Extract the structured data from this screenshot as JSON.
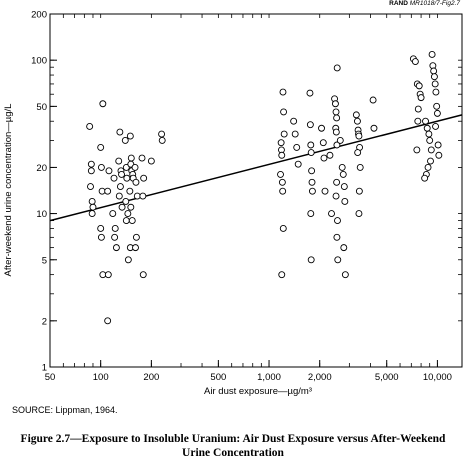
{
  "header": {
    "org": "RAND",
    "doc": "MR1018/7-Fig2.7"
  },
  "source_note": "SOURCE:  Lippman, 1964.",
  "caption": {
    "line1": "Figure 2.7—Exposure to Insoluble Uranium:  Air Dust Exposure versus After-Weekend",
    "line2": "Urine Concentration"
  },
  "chart_data": {
    "type": "scatter",
    "title": "",
    "xlabel": "Air dust exposure—µg/m³",
    "ylabel": "After-weekend urine concentration—µg/L",
    "x_scale": "log",
    "y_scale": "log",
    "xlim": [
      50,
      14000
    ],
    "ylim": [
      1,
      200
    ],
    "x_ticks": [
      {
        "value": 50,
        "label": "50"
      },
      {
        "value": 100,
        "label": "100"
      },
      {
        "value": 200,
        "label": "200"
      },
      {
        "value": 500,
        "label": "500"
      },
      {
        "value": 1000,
        "label": "1,000"
      },
      {
        "value": 2000,
        "label": "2,000"
      },
      {
        "value": 5000,
        "label": "5,000"
      },
      {
        "value": 10000,
        "label": "10,000"
      }
    ],
    "y_ticks": [
      {
        "value": 1,
        "label": "1"
      },
      {
        "value": 2,
        "label": "2"
      },
      {
        "value": 5,
        "label": "5"
      },
      {
        "value": 10,
        "label": "10"
      },
      {
        "value": 20,
        "label": "20"
      },
      {
        "value": 50,
        "label": "50"
      },
      {
        "value": 100,
        "label": "100"
      },
      {
        "value": 200,
        "label": "200"
      }
    ],
    "grid": false,
    "legend": "none",
    "colors": {
      "marker_stroke": "#000000",
      "marker_fill": "#ffffff",
      "line": "#000000"
    },
    "trend_line": {
      "x": [
        50,
        14000
      ],
      "y": [
        9,
        44
      ]
    },
    "points": [
      [
        86,
        37
      ],
      [
        88,
        21
      ],
      [
        88,
        19
      ],
      [
        87,
        15
      ],
      [
        89,
        12
      ],
      [
        90,
        11
      ],
      [
        89,
        10
      ],
      [
        103,
        52
      ],
      [
        100,
        27
      ],
      [
        101,
        20
      ],
      [
        102,
        14
      ],
      [
        100,
        8
      ],
      [
        101,
        7
      ],
      [
        103,
        4
      ],
      [
        112,
        19
      ],
      [
        110,
        14
      ],
      [
        111,
        4
      ],
      [
        110,
        2
      ],
      [
        120,
        17
      ],
      [
        118,
        10
      ],
      [
        122,
        8
      ],
      [
        121,
        7
      ],
      [
        124,
        6
      ],
      [
        128,
        22
      ],
      [
        130,
        34
      ],
      [
        132,
        19
      ],
      [
        133,
        18
      ],
      [
        131,
        15
      ],
      [
        129,
        13
      ],
      [
        134,
        11
      ],
      [
        140,
        30
      ],
      [
        142,
        20
      ],
      [
        143,
        17
      ],
      [
        141,
        12
      ],
      [
        145,
        10
      ],
      [
        142,
        9
      ],
      [
        146,
        5
      ],
      [
        150,
        32
      ],
      [
        152,
        23
      ],
      [
        151,
        21
      ],
      [
        153,
        19
      ],
      [
        155,
        18
      ],
      [
        156,
        17
      ],
      [
        149,
        14
      ],
      [
        151,
        11
      ],
      [
        154,
        9
      ],
      [
        150,
        6
      ],
      [
        160,
        20
      ],
      [
        162,
        16
      ],
      [
        165,
        13
      ],
      [
        163,
        7
      ],
      [
        161,
        6
      ],
      [
        176,
        23
      ],
      [
        180,
        17
      ],
      [
        178,
        13
      ],
      [
        179,
        4
      ],
      [
        200,
        22
      ],
      [
        230,
        33
      ],
      [
        232,
        30
      ],
      [
        1170,
        18
      ],
      [
        1180,
        29
      ],
      [
        1185,
        26
      ],
      [
        1190,
        24
      ],
      [
        1200,
        16
      ],
      [
        1205,
        14
      ],
      [
        1190,
        4
      ],
      [
        1210,
        62
      ],
      [
        1220,
        46
      ],
      [
        1230,
        33
      ],
      [
        1215,
        8
      ],
      [
        1400,
        40
      ],
      [
        1430,
        33
      ],
      [
        1460,
        27
      ],
      [
        1490,
        21
      ],
      [
        1750,
        61
      ],
      [
        1760,
        38
      ],
      [
        1770,
        28
      ],
      [
        1780,
        25
      ],
      [
        1790,
        19
      ],
      [
        1800,
        16
      ],
      [
        1810,
        14
      ],
      [
        1770,
        10
      ],
      [
        1780,
        5
      ],
      [
        2050,
        36
      ],
      [
        2100,
        29
      ],
      [
        2120,
        23
      ],
      [
        2150,
        14
      ],
      [
        2300,
        24
      ],
      [
        2350,
        10
      ],
      [
        2450,
        56
      ],
      [
        2480,
        52
      ],
      [
        2500,
        46
      ],
      [
        2520,
        42
      ],
      [
        2490,
        36
      ],
      [
        2510,
        34
      ],
      [
        2530,
        28
      ],
      [
        2520,
        16
      ],
      [
        2500,
        13
      ],
      [
        2550,
        9
      ],
      [
        2560,
        5
      ],
      [
        2530,
        7
      ],
      [
        2540,
        89
      ],
      [
        2650,
        30
      ],
      [
        2720,
        20
      ],
      [
        2760,
        18
      ],
      [
        2800,
        15
      ],
      [
        2820,
        12
      ],
      [
        2780,
        6
      ],
      [
        2840,
        4
      ],
      [
        3300,
        44
      ],
      [
        3350,
        40
      ],
      [
        3380,
        35
      ],
      [
        3400,
        33
      ],
      [
        3420,
        32
      ],
      [
        3450,
        27
      ],
      [
        3360,
        25
      ],
      [
        3480,
        20
      ],
      [
        3440,
        14
      ],
      [
        3420,
        10
      ],
      [
        4150,
        55
      ],
      [
        4200,
        36
      ],
      [
        7200,
        102
      ],
      [
        7400,
        98
      ],
      [
        7600,
        70
      ],
      [
        7800,
        68
      ],
      [
        7900,
        60
      ],
      [
        8000,
        57
      ],
      [
        7700,
        48
      ],
      [
        7650,
        40
      ],
      [
        7550,
        26
      ],
      [
        8500,
        40
      ],
      [
        8700,
        36
      ],
      [
        8900,
        33
      ],
      [
        9000,
        30
      ],
      [
        9200,
        26
      ],
      [
        9100,
        22
      ],
      [
        8800,
        20
      ],
      [
        8600,
        18
      ],
      [
        8400,
        17
      ],
      [
        9300,
        109
      ],
      [
        9400,
        92
      ],
      [
        9500,
        85
      ],
      [
        9600,
        78
      ],
      [
        9700,
        70
      ],
      [
        9800,
        62
      ],
      [
        9900,
        50
      ],
      [
        10000,
        45
      ],
      [
        10100,
        28
      ],
      [
        10200,
        24
      ],
      [
        9750,
        37
      ]
    ]
  }
}
